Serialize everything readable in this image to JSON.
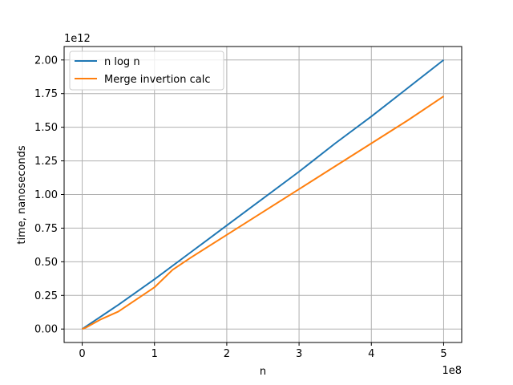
{
  "chart_data": {
    "type": "line",
    "xlabel": "n",
    "ylabel": "time, nanoseconds",
    "x_offset_label": "1e8",
    "y_offset_label": "1e12",
    "xlim": [
      -0.25,
      5.25
    ],
    "ylim": [
      -0.1,
      2.1
    ],
    "x_ticks": [
      0,
      1,
      2,
      3,
      4,
      5
    ],
    "x_tick_labels": [
      "0",
      "1",
      "2",
      "3",
      "4",
      "5"
    ],
    "y_ticks": [
      0.0,
      0.25,
      0.5,
      0.75,
      1.0,
      1.25,
      1.5,
      1.75,
      2.0
    ],
    "y_tick_labels": [
      "0.00",
      "0.25",
      "0.50",
      "0.75",
      "1.00",
      "1.25",
      "1.50",
      "1.75",
      "2.00"
    ],
    "grid": true,
    "legend_position": "top-left",
    "series": [
      {
        "name": "n log n",
        "color": "#1f77b4",
        "x": [
          0,
          0.5,
          1,
          1.5,
          2,
          2.5,
          3,
          3.5,
          4,
          4.5,
          5
        ],
        "y": [
          0,
          0.18,
          0.37,
          0.57,
          0.77,
          0.97,
          1.17,
          1.38,
          1.58,
          1.79,
          2.0
        ]
      },
      {
        "name": "Merge invertion calc",
        "color": "#ff7f0e",
        "x": [
          0,
          0.05,
          0.25,
          0.5,
          1,
          1.25,
          1.5,
          2,
          2.5,
          3,
          3.5,
          4,
          4.5,
          5
        ],
        "y": [
          0,
          0.01,
          0.07,
          0.13,
          0.31,
          0.44,
          0.53,
          0.7,
          0.87,
          1.04,
          1.21,
          1.38,
          1.55,
          1.73
        ]
      }
    ]
  }
}
